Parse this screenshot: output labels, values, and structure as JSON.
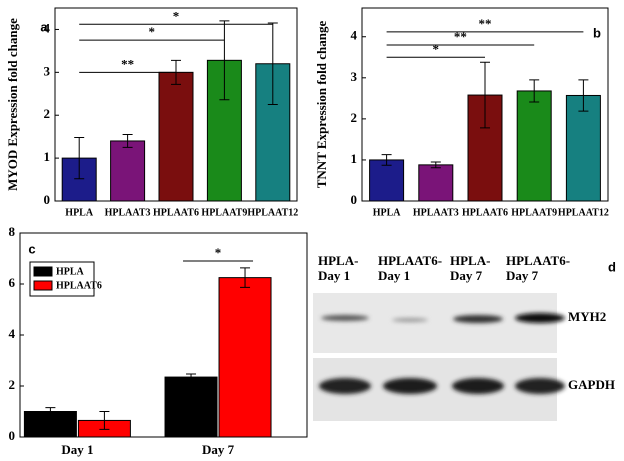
{
  "chart_data": [
    {
      "type": "bar",
      "panel": "a",
      "ylabel": "MYOD Expression fold change",
      "categories": [
        "HPLA",
        "HPLAAT3",
        "HPLAAT6",
        "HPLAAT9",
        "HPLAAT12"
      ],
      "colors": [
        "#1c1c8a",
        "#7a1478",
        "#7a0e0e",
        "#1a8a1a",
        "#168080"
      ],
      "values": [
        1.0,
        1.4,
        3.0,
        3.28,
        3.2
      ],
      "errors": [
        0.48,
        0.15,
        0.28,
        0.92,
        0.95
      ],
      "ylim": [
        0,
        4.5
      ],
      "yticks": [
        0,
        1,
        2,
        3,
        4
      ],
      "annotations": [
        "**",
        "*",
        "*"
      ]
    },
    {
      "type": "bar",
      "panel": "b",
      "ylabel": "TNNT Expression fold change",
      "categories": [
        "HPLA",
        "HPLAAT3",
        "HPLAAT6",
        "HPLAAT9",
        "HPLAAT12"
      ],
      "colors": [
        "#1c1c8a",
        "#7a1478",
        "#7a0e0e",
        "#1a8a1a",
        "#168080"
      ],
      "values": [
        1.0,
        0.88,
        2.58,
        2.68,
        2.57
      ],
      "errors": [
        0.13,
        0.07,
        0.8,
        0.27,
        0.38
      ],
      "ylim": [
        0,
        4.7
      ],
      "yticks": [
        0,
        1,
        2,
        3,
        4
      ],
      "annotations": [
        "*",
        "**",
        "**"
      ]
    },
    {
      "type": "grouped_bar",
      "panel": "c",
      "categories": [
        "Day 1",
        "Day 7"
      ],
      "series": [
        {
          "name": "HPLA",
          "color": "#000000",
          "values": [
            1.0,
            2.35
          ],
          "errors": [
            0.15,
            0.12
          ]
        },
        {
          "name": "HPLAAT6",
          "color": "#ff0000",
          "values": [
            0.65,
            6.25
          ],
          "errors": [
            0.35,
            0.38
          ]
        }
      ],
      "ylim": [
        0,
        8
      ],
      "yticks": [
        0,
        2,
        4,
        6,
        8
      ],
      "annotations": [
        "*"
      ]
    }
  ],
  "blot": {
    "panel": "d",
    "lanes": [
      [
        "HPLA-",
        "Day 1"
      ],
      [
        "HPLAAT6-",
        "Day 1"
      ],
      [
        "HPLA-",
        "Day 7"
      ],
      [
        "HPLAAT6-",
        "Day 7"
      ]
    ],
    "rows": [
      "MYH2",
      "GAPDH"
    ]
  }
}
